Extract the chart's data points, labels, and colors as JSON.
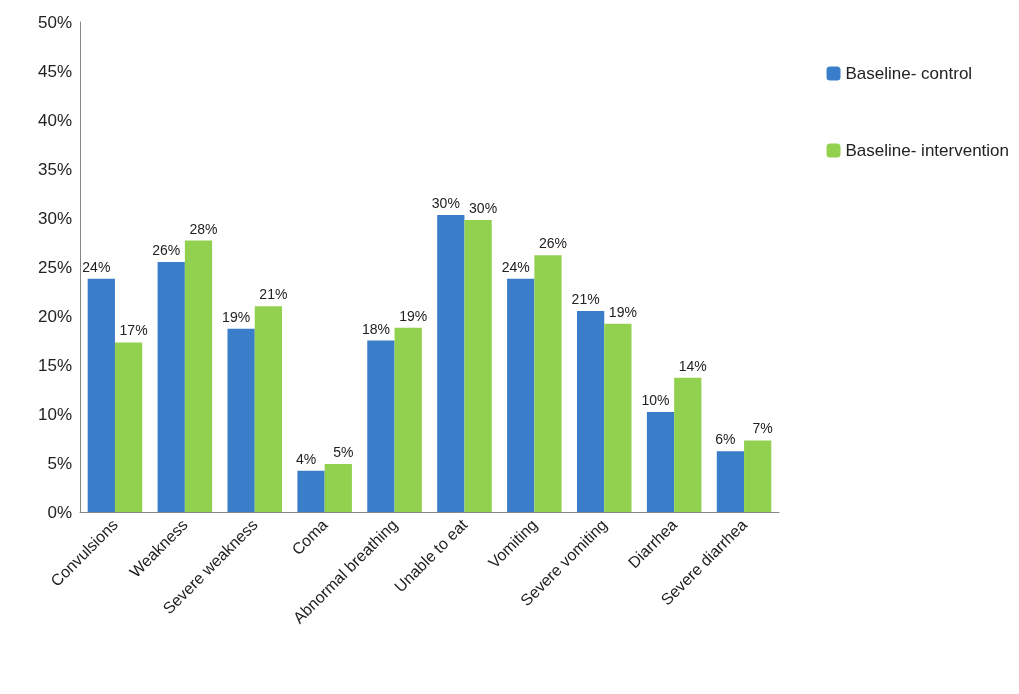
{
  "chart_data": {
    "type": "bar",
    "categories": [
      "Convulsions",
      "Weakness",
      "Severe weakness",
      "Coma",
      "Abnormal breathing",
      "Unable to eat",
      "Vomiting",
      "Severe vomiting",
      "Diarrhea",
      "Severe diarrhea"
    ],
    "series": [
      {
        "name": "Baseline- control",
        "color": "#3a7dc9",
        "values": [
          23.8,
          25.5,
          18.7,
          4.2,
          17.5,
          30.3,
          23.8,
          20.5,
          10.2,
          6.2
        ],
        "value_labels": [
          "24%",
          "26%",
          "19%",
          "4%",
          "18%",
          "30%",
          "24%",
          "21%",
          "10%",
          "6%"
        ]
      },
      {
        "name": "Baseline- intervention",
        "color": "#92d050",
        "values": [
          17.3,
          27.7,
          21.0,
          4.9,
          18.8,
          29.8,
          26.2,
          19.2,
          13.7,
          7.3
        ],
        "value_labels": [
          "17%",
          "28%",
          "21%",
          "5%",
          "19%",
          "30%",
          "26%",
          "19%",
          "14%",
          "7%"
        ]
      }
    ],
    "ylim": [
      0,
      50
    ],
    "yticks": [
      {
        "value": 0,
        "label": "0%"
      },
      {
        "value": 5,
        "label": "5%"
      },
      {
        "value": 10,
        "label": "10%"
      },
      {
        "value": 15,
        "label": "15%"
      },
      {
        "value": 20,
        "label": "20%"
      },
      {
        "value": 25,
        "label": "25%"
      },
      {
        "value": 30,
        "label": "30%"
      },
      {
        "value": 35,
        "label": "35%"
      },
      {
        "value": 40,
        "label": "40%"
      },
      {
        "value": 45,
        "label": "45%"
      },
      {
        "value": 50,
        "label": "50%"
      }
    ],
    "grid": false,
    "legend": "right"
  }
}
